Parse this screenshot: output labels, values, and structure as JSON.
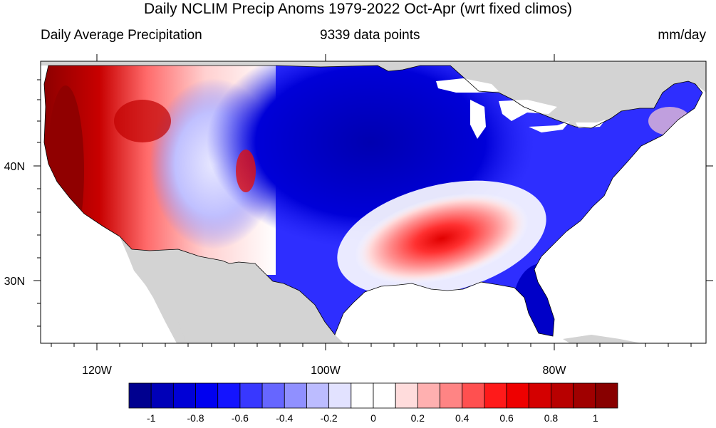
{
  "title": "Daily NCLIM Precip Anoms 1979-2022 Oct-Apr (wrt fixed climos)",
  "subtitle_left": "Daily Average Precipitation",
  "subtitle_center": "9339 data points",
  "subtitle_right": "mm/day",
  "axes": {
    "x_ticks": [
      "120W",
      "100W",
      "80W"
    ],
    "y_ticks": [
      "40N",
      "30N"
    ]
  },
  "colorbar": {
    "labels": [
      "-1",
      "-0.8",
      "-0.6",
      "-0.4",
      "-0.2",
      "0",
      "0.2",
      "0.4",
      "0.6",
      "0.8",
      "1"
    ],
    "colors": [
      "#00008f",
      "#0000b8",
      "#0000d6",
      "#0000f0",
      "#1414ff",
      "#3838ff",
      "#6666ff",
      "#9090ff",
      "#bcbcff",
      "#e2e2ff",
      "#ffffff",
      "#ffffff",
      "#ffdcdc",
      "#ffb0b0",
      "#ff8484",
      "#ff5050",
      "#ff1a1a",
      "#ee0000",
      "#d40000",
      "#b80000",
      "#a00000",
      "#880000"
    ]
  },
  "colors": {
    "land_outside": "#d3d3d3",
    "ocean": "#ffffff",
    "wet_anomaly": "#b00000",
    "dry_anomaly": "#0000d0"
  }
}
